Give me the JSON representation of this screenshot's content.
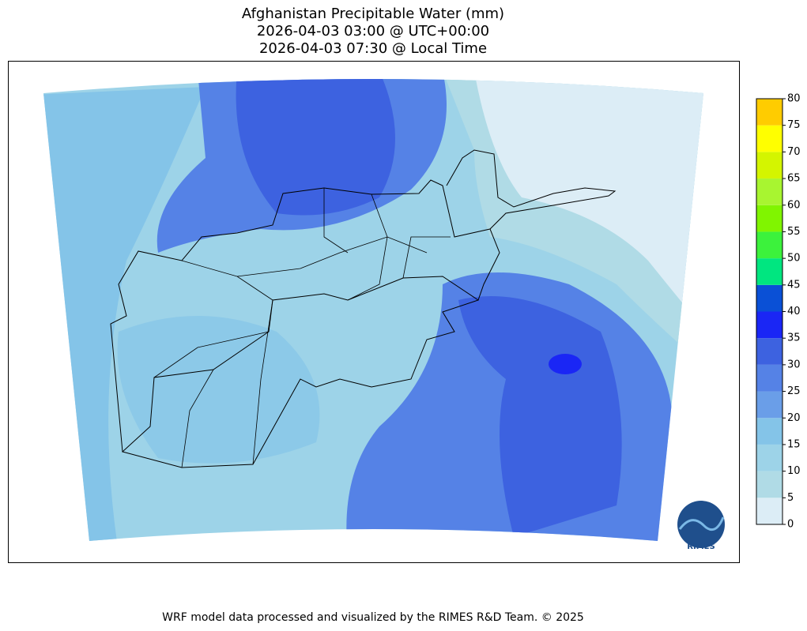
{
  "title": [
    "Afghanistan Precipitable Water (mm)",
    "2026-04-03 03:00 @ UTC+00:00",
    "2026-04-03 07:30 @ Local Time"
  ],
  "colorbar": {
    "ticks": [
      0,
      5,
      10,
      15,
      20,
      25,
      30,
      35,
      40,
      45,
      50,
      55,
      60,
      65,
      70,
      75,
      80
    ],
    "colors": [
      "#dcedf6",
      "#b0dbe6",
      "#9dd3e8",
      "#84c4e8",
      "#6a9ee8",
      "#5582e6",
      "#3d62e0",
      "#1a26f5",
      "#0a50d6",
      "#00e680",
      "#3cf23c",
      "#80f500",
      "#a8f530",
      "#d4f500",
      "#ffff00",
      "#ffcc00"
    ]
  },
  "logo": "RIMES",
  "footer": "WRF model data processed and visualized by the RIMES R&D Team. © 2025"
}
